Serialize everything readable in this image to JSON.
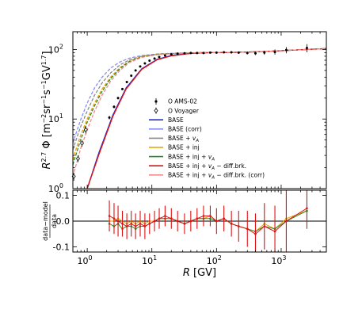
{
  "chart_data": [
    {
      "type": "line",
      "panel": "main",
      "xlabel": "",
      "ylabel": "R^{2.7} Φ [m^{-2}sr^{-1}s^{-1}GV^{1.7}]",
      "xscale": "log",
      "yscale": "log",
      "xlim": [
        0.6,
        5000
      ],
      "ylim": [
        1,
        180
      ],
      "x_tick_labels": [
        "10^0",
        "10^1",
        "10^2",
        "10^3"
      ],
      "y_tick_labels": [
        "10^0",
        "10^1",
        "10^2"
      ],
      "grid": false,
      "legend_position": "center-right",
      "legend": [
        {
          "label": "O AMS-02",
          "kind": "marker",
          "marker": "filled-circle",
          "color": "#000000"
        },
        {
          "label": "O Voyager",
          "kind": "marker",
          "marker": "open-diamond",
          "color": "#000000"
        },
        {
          "label": "BASE",
          "kind": "line",
          "color": "#1f2fd8",
          "dash": "solid"
        },
        {
          "label": "BASE (corr)",
          "kind": "line",
          "color": "#8a8ef0",
          "dash": "solid"
        },
        {
          "label": "BASE + v_A",
          "kind": "line",
          "color": "#8a8a8a",
          "dash": "solid"
        },
        {
          "label": "BASE + inj",
          "kind": "line",
          "color": "#e8a000",
          "dash": "solid"
        },
        {
          "label": "BASE + inj + v_A",
          "kind": "line",
          "color": "#2a8a2a",
          "dash": "solid"
        },
        {
          "label": "BASE + inj + v_A - diff.brk.",
          "kind": "line",
          "color": "#e01010",
          "dash": "solid"
        },
        {
          "label": "BASE + inj + v_A - diff.brk. (corr)",
          "kind": "line",
          "color": "#f08c8c",
          "dash": "solid"
        }
      ],
      "series": [
        {
          "name": "BASE",
          "color": "#1f2fd8",
          "x": [
            1.0,
            1.5,
            2.5,
            4,
            7,
            12,
            20,
            40,
            80,
            200,
            500,
            1000,
            2000,
            5000
          ],
          "y": [
            1.0,
            3.2,
            11.5,
            28,
            53,
            72,
            82,
            88,
            90,
            91,
            93,
            96,
            99,
            103
          ]
        },
        {
          "name": "BASE (corr)",
          "color": "#8a8ef0",
          "x": [
            0.6,
            0.7,
            0.8,
            1.0,
            1.3,
            1.7,
            2.3,
            3.2,
            4.5,
            7,
            12,
            25,
            60,
            200,
            500,
            1000,
            2000,
            5000
          ],
          "y": [
            4.5,
            7.0,
            10.0,
            17,
            28,
            40,
            54,
            66,
            75,
            82,
            86,
            89,
            90,
            91,
            93,
            96,
            99,
            103
          ]
        },
        {
          "name": "BASE + v_A",
          "color": "#8a8a8a",
          "x": [
            0.6,
            0.7,
            0.8,
            1.0,
            1.3,
            1.7,
            2.3,
            3.2,
            4.5,
            7,
            12,
            25,
            60,
            200,
            500,
            1000,
            2000,
            5000
          ],
          "y": [
            3.6,
            5.6,
            8.0,
            13,
            22,
            33,
            46,
            60,
            71,
            80,
            85,
            88,
            90,
            91,
            93,
            96,
            99,
            103
          ]
        },
        {
          "name": "BASE + inj",
          "color": "#e8a000",
          "x": [
            0.6,
            0.7,
            0.8,
            1.0,
            1.3,
            1.7,
            2.3,
            3.2,
            4.5,
            7,
            12,
            25,
            60,
            200,
            500,
            1000,
            2000,
            5000
          ],
          "y": [
            2.6,
            4.2,
            6.0,
            10,
            17,
            27,
            40,
            55,
            68,
            79,
            85,
            88,
            90,
            91,
            93,
            96,
            99,
            103
          ]
        },
        {
          "name": "BASE + inj + v_A",
          "color": "#2a8a2a",
          "x": [
            0.6,
            0.7,
            0.8,
            1.0,
            1.3,
            1.7,
            2.3,
            3.2,
            4.5,
            7,
            12,
            25,
            60,
            200,
            500,
            1000,
            2000,
            5000
          ],
          "y": [
            2.2,
            3.5,
            5.2,
            9.0,
            15.5,
            25,
            38,
            53,
            67,
            78,
            85,
            88,
            90,
            91,
            93,
            96,
            99,
            103
          ]
        },
        {
          "name": "BASE + inj + v_A - diff.brk.",
          "color": "#e01010",
          "x": [
            1.0,
            1.5,
            2.5,
            4,
            7,
            12,
            20,
            40,
            80,
            200,
            500,
            1000,
            2000,
            5000
          ],
          "y": [
            1.0,
            3.0,
            11,
            27,
            52,
            71,
            81,
            88,
            90,
            91,
            93,
            96,
            99,
            103
          ]
        },
        {
          "name": "BASE + inj + v_A - diff.brk. (corr)",
          "color": "#f08c8c",
          "x": [
            0.6,
            0.7,
            0.8,
            1.0,
            1.3,
            1.7,
            2.3,
            3.2,
            4.5,
            7,
            12,
            25,
            60,
            200,
            500,
            1000,
            2000,
            5000
          ],
          "y": [
            1.5,
            2.5,
            3.9,
            7.0,
            13,
            22,
            35,
            50,
            65,
            77,
            84,
            88,
            90,
            91,
            93,
            96,
            99,
            103
          ]
        },
        {
          "name": "O AMS-02",
          "kind": "points",
          "color": "#000000",
          "x": [
            2.2,
            2.6,
            3.0,
            3.5,
            4.1,
            4.8,
            5.6,
            6.6,
            7.8,
            9.2,
            11,
            13,
            16,
            20,
            25,
            32,
            40,
            50,
            63,
            80,
            100,
            130,
            170,
            220,
            300,
            400,
            550,
            800,
            1200,
            2500
          ],
          "y": [
            10.5,
            15,
            20,
            27,
            34,
            42,
            50,
            57,
            63,
            69,
            74,
            78,
            82,
            85,
            87,
            88,
            89,
            89,
            89,
            90,
            90,
            91,
            91,
            90,
            89,
            88,
            90,
            92,
            98,
            105
          ],
          "yerr": [
            0.6,
            0.7,
            0.8,
            0.9,
            1.0,
            1.1,
            1.2,
            1.2,
            1.3,
            1.3,
            1.3,
            1.4,
            1.4,
            1.4,
            1.4,
            1.5,
            1.5,
            1.5,
            1.6,
            1.7,
            1.8,
            2,
            2.5,
            3,
            4,
            5,
            6,
            8,
            10,
            14
          ]
        },
        {
          "name": "O Voyager",
          "kind": "points",
          "color": "#000000",
          "x": [
            0.62,
            0.72,
            0.83,
            0.95
          ],
          "y": [
            1.5,
            2.7,
            4.5,
            7.0
          ],
          "yerr": [
            0.2,
            0.3,
            0.5,
            0.8
          ]
        }
      ]
    },
    {
      "type": "line",
      "panel": "residual",
      "xlabel": "R [GV]",
      "ylabel": "(data−model)/data",
      "ylabel_numerator": "data−model",
      "ylabel_denominator": "data",
      "xscale": "log",
      "xlim": [
        0.6,
        5000
      ],
      "ylim": [
        -0.12,
        0.12
      ],
      "y_tick_labels": [
        "0.1",
        "0.0",
        "-0.1"
      ],
      "x_tick_labels": [
        "10^0",
        "10^1",
        "10^2",
        "10^3"
      ],
      "reference_line": 0.0,
      "series": [
        {
          "name": "BASE + inj + v_A - diff.brk.",
          "color": "#e01010",
          "x": [
            2.2,
            2.6,
            3.0,
            3.5,
            4.1,
            4.8,
            5.6,
            6.6,
            7.8,
            9.2,
            11,
            13,
            16,
            20,
            25,
            32,
            40,
            50,
            63,
            80,
            100,
            130,
            170,
            220,
            300,
            400,
            550,
            800,
            1200,
            2500
          ],
          "y": [
            0.02,
            0.01,
            0.0,
            -0.01,
            -0.02,
            -0.01,
            -0.02,
            -0.01,
            -0.02,
            -0.01,
            0.0,
            0.01,
            0.02,
            0.01,
            0.0,
            -0.01,
            0.0,
            0.01,
            0.02,
            0.02,
            0.0,
            0.01,
            -0.01,
            -0.02,
            -0.03,
            -0.05,
            -0.02,
            -0.04,
            0.0,
            0.05
          ],
          "yerr": [
            0.06,
            0.06,
            0.06,
            0.05,
            0.05,
            0.05,
            0.05,
            0.05,
            0.05,
            0.04,
            0.04,
            0.04,
            0.04,
            0.04,
            0.04,
            0.04,
            0.04,
            0.04,
            0.04,
            0.04,
            0.05,
            0.05,
            0.05,
            0.06,
            0.07,
            0.08,
            0.09,
            0.1,
            0.12,
            0.08
          ]
        },
        {
          "name": "BASE + inj + v_A",
          "color": "#2a8a2a",
          "x": [
            2.2,
            2.6,
            3.0,
            3.5,
            4.1,
            4.8,
            5.6,
            6.6,
            7.8,
            9.2,
            11,
            13,
            16,
            20,
            25,
            32,
            40,
            50,
            63,
            80,
            100,
            130,
            170,
            220,
            300,
            400,
            550,
            800,
            1200,
            2500
          ],
          "y": [
            -0.01,
            -0.02,
            -0.01,
            -0.03,
            -0.02,
            -0.02,
            -0.03,
            -0.02,
            -0.02,
            -0.01,
            0.0,
            0.01,
            0.01,
            0.01,
            0.0,
            -0.01,
            0.0,
            0.01,
            0.01,
            0.01,
            0.0,
            0.01,
            -0.01,
            -0.02,
            -0.03,
            -0.04,
            -0.02,
            -0.03,
            0.0,
            0.04
          ]
        },
        {
          "name": "BASE + inj",
          "color": "#e8a000",
          "x": [
            2.2,
            2.6,
            3.0,
            3.5,
            4.1,
            4.8,
            5.6,
            6.6,
            7.8,
            9.2,
            11,
            13,
            16,
            20,
            25,
            32,
            40,
            50,
            63,
            80,
            100,
            130,
            170,
            220,
            300,
            400,
            550,
            800,
            1200,
            2500
          ],
          "y": [
            0.0,
            0.0,
            0.01,
            0.0,
            -0.01,
            0.0,
            -0.01,
            0.0,
            -0.01,
            0.0,
            0.0,
            0.01,
            0.01,
            0.01,
            0.0,
            -0.01,
            0.0,
            0.01,
            0.01,
            0.02,
            0.0,
            0.01,
            -0.01,
            -0.02,
            -0.03,
            -0.04,
            -0.01,
            -0.03,
            0.01,
            0.04
          ]
        }
      ]
    }
  ]
}
